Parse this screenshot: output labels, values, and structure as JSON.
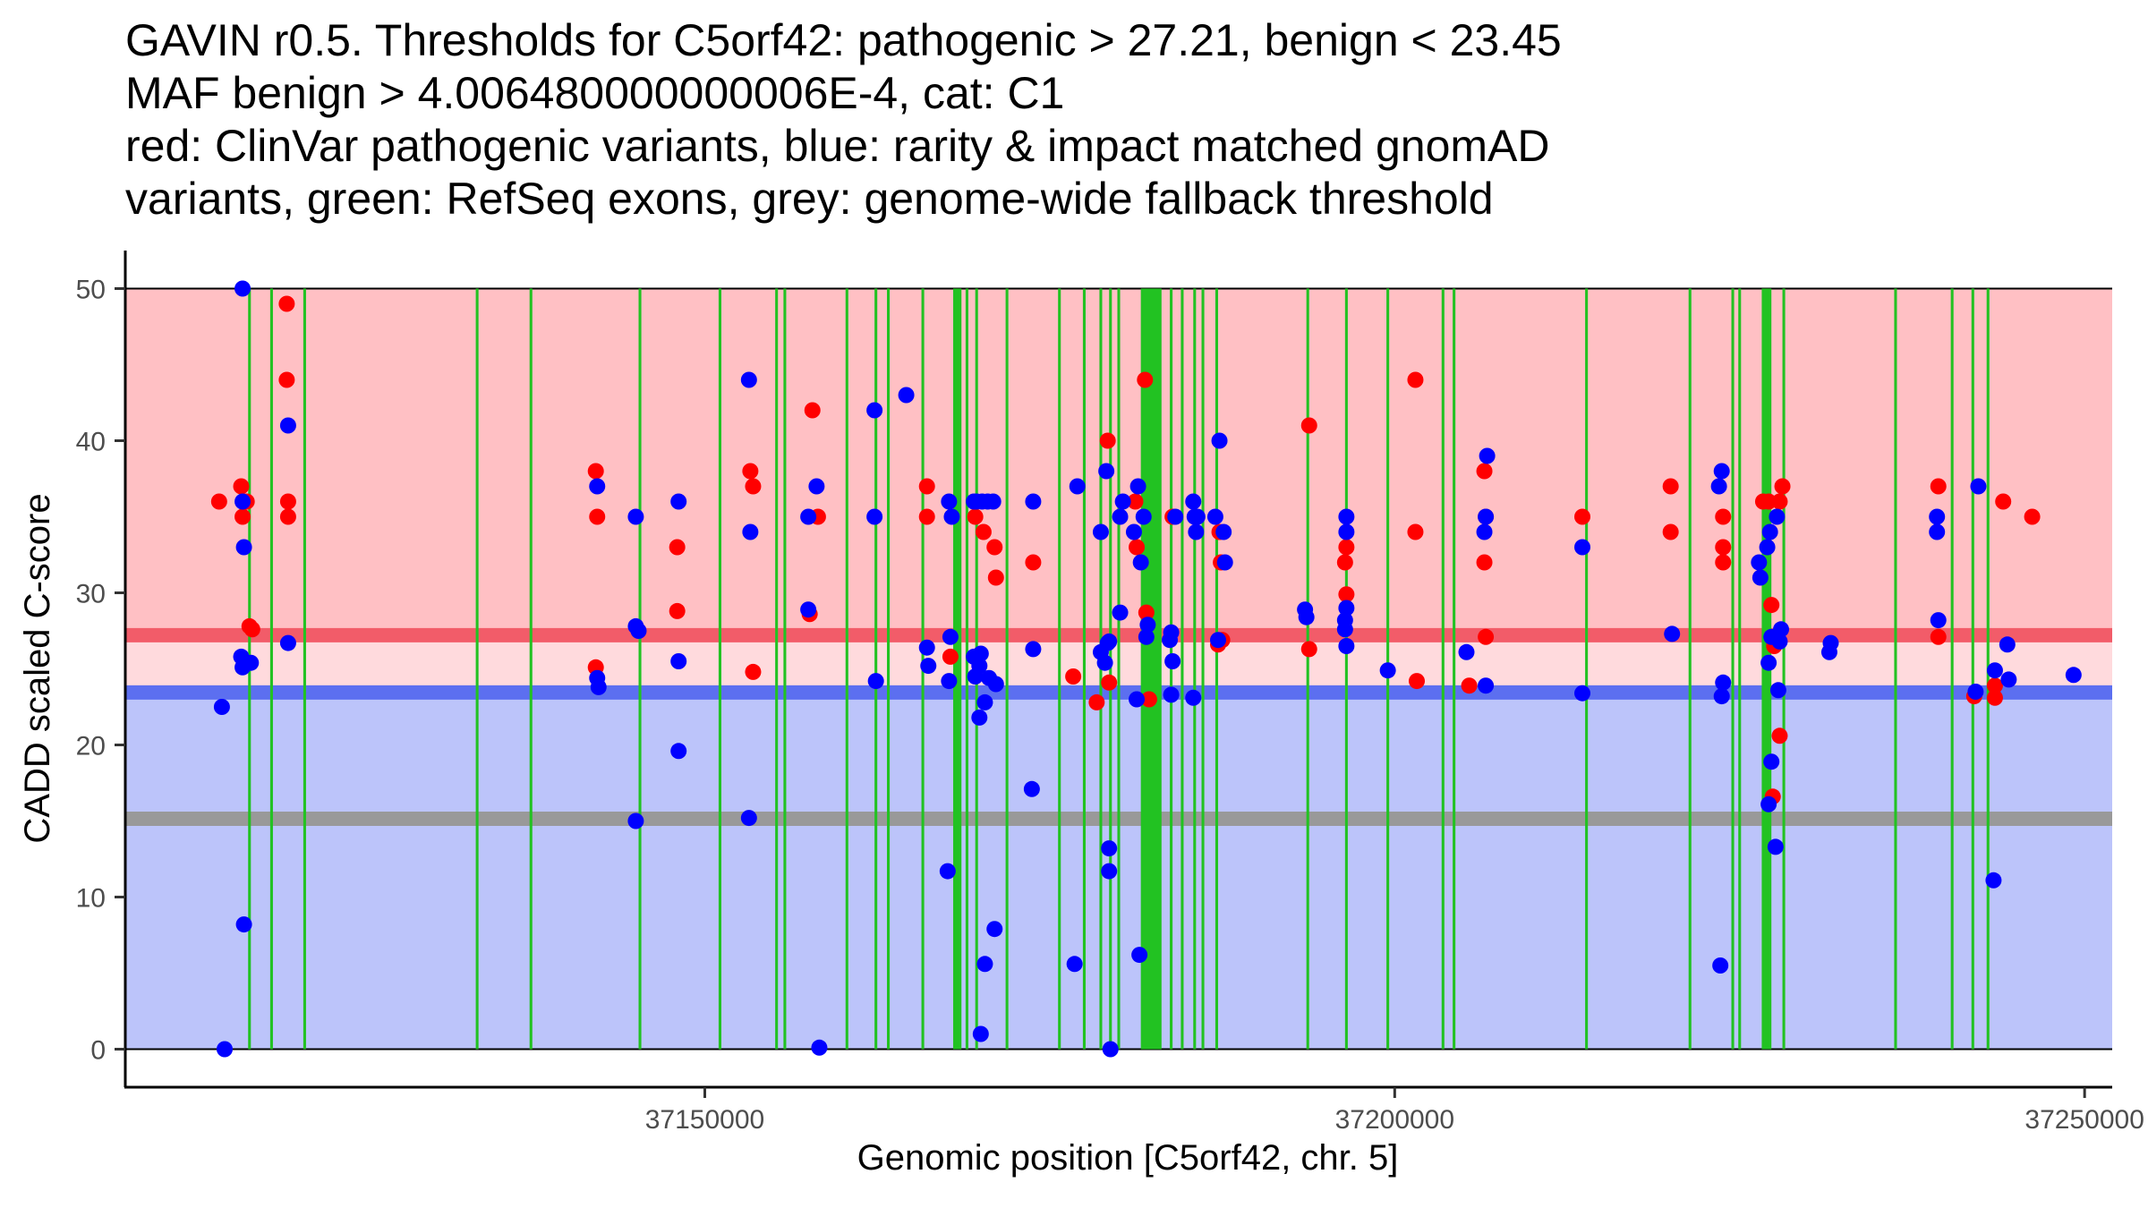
{
  "chart_data": {
    "type": "scatter",
    "title_lines": [
      "GAVIN r0.5. Thresholds for C5orf42: pathogenic > 27.21, benign < 23.45",
      "MAF benign > 4.006480000000006E-4, cat: C1",
      "red: ClinVar pathogenic variants, blue: rarity & impact matched gnomAD",
      "variants, green: RefSeq exons, grey: genome-wide fallback threshold"
    ],
    "xlabel": "Genomic position [C5orf42, chr. 5]",
    "ylabel": "CADD scaled C-score",
    "xlim": [
      37108000,
      37252000
    ],
    "ylim": [
      -2.5,
      52.5
    ],
    "x_ticks": [
      37150000,
      37200000,
      37250000
    ],
    "x_tick_labels": [
      "37150000",
      "37200000",
      "37250000"
    ],
    "y_ticks": [
      0,
      10,
      20,
      30,
      40,
      50
    ],
    "y_tick_labels": [
      "0",
      "10",
      "20",
      "30",
      "40",
      "50"
    ],
    "thresholds": {
      "pathogenic": 27.21,
      "benign": 23.45,
      "fallback": 15.15,
      "top": 50,
      "bottom": 0
    },
    "colors": {
      "pathogenic_band": "#ffc0c4",
      "middle_band": "#ffdadd",
      "benign_band": "#bcc4fa",
      "pathogenic_line": "#f25c69",
      "benign_line": "#5c6ff0",
      "fallback_line": "#999999",
      "exon": "#22c222",
      "pathogenic_point": "#ff0000",
      "benign_point": "#0000ff"
    },
    "exons": [
      [
        37116900,
        37117100
      ],
      [
        37118500,
        37118700
      ],
      [
        37120900,
        37121100
      ],
      [
        37133400,
        37133600
      ],
      [
        37137300,
        37137500
      ],
      [
        37145200,
        37145400
      ],
      [
        37151000,
        37151200
      ],
      [
        37155100,
        37155300
      ],
      [
        37155700,
        37155900
      ],
      [
        37160200,
        37160400
      ],
      [
        37162300,
        37162500
      ],
      [
        37163200,
        37163400
      ],
      [
        37165700,
        37165900
      ],
      [
        37168000,
        37168600
      ],
      [
        37168900,
        37169100
      ],
      [
        37169600,
        37169800
      ],
      [
        37171800,
        37172000
      ],
      [
        37175600,
        37175800
      ],
      [
        37177400,
        37177600
      ],
      [
        37178600,
        37178800
      ],
      [
        37179300,
        37179500
      ],
      [
        37179900,
        37180100
      ],
      [
        37181600,
        37183100
      ],
      [
        37183700,
        37183900
      ],
      [
        37184500,
        37184700
      ],
      [
        37185400,
        37185600
      ],
      [
        37186000,
        37186200
      ],
      [
        37187000,
        37187200
      ],
      [
        37193600,
        37193800
      ],
      [
        37196400,
        37196600
      ],
      [
        37199400,
        37199600
      ],
      [
        37203400,
        37203600
      ],
      [
        37204200,
        37204400
      ],
      [
        37213800,
        37214000
      ],
      [
        37221300,
        37221500
      ],
      [
        37224400,
        37224600
      ],
      [
        37224900,
        37225100
      ],
      [
        37226600,
        37227300
      ],
      [
        37228100,
        37228300
      ],
      [
        37236200,
        37236400
      ],
      [
        37240300,
        37240500
      ],
      [
        37241800,
        37242000
      ],
      [
        37242900,
        37243100
      ]
    ],
    "series": [
      {
        "name": "ClinVar pathogenic variants",
        "color": "red",
        "points": [
          [
            37114800,
            36
          ],
          [
            37116400,
            37
          ],
          [
            37116500,
            35
          ],
          [
            37116800,
            36
          ],
          [
            37117000,
            27.8
          ],
          [
            37117200,
            27.6
          ],
          [
            37119700,
            49
          ],
          [
            37119700,
            44
          ],
          [
            37119800,
            36
          ],
          [
            37119800,
            35
          ],
          [
            37142100,
            38
          ],
          [
            37142200,
            35
          ],
          [
            37142100,
            25.1
          ],
          [
            37148000,
            33
          ],
          [
            37148000,
            28.8
          ],
          [
            37153300,
            38
          ],
          [
            37153500,
            37
          ],
          [
            37153500,
            24.8
          ],
          [
            37157800,
            42
          ],
          [
            37157600,
            28.6
          ],
          [
            37158200,
            35
          ],
          [
            37166100,
            37
          ],
          [
            37166100,
            35
          ],
          [
            37167800,
            25.8
          ],
          [
            37169600,
            35
          ],
          [
            37170200,
            34
          ],
          [
            37171000,
            33
          ],
          [
            37171100,
            31
          ],
          [
            37173800,
            32
          ],
          [
            37176700,
            24.5
          ],
          [
            37178400,
            22.8
          ],
          [
            37179200,
            40
          ],
          [
            37179300,
            24.1
          ],
          [
            37181200,
            36
          ],
          [
            37181300,
            33
          ],
          [
            37181900,
            44
          ],
          [
            37182000,
            28.7
          ],
          [
            37182200,
            23
          ],
          [
            37183900,
            35
          ],
          [
            37187300,
            34
          ],
          [
            37187400,
            32
          ],
          [
            37187200,
            26.6
          ],
          [
            37187500,
            26.9
          ],
          [
            37193800,
            41
          ],
          [
            37193800,
            26.3
          ],
          [
            37196500,
            33
          ],
          [
            37196400,
            32
          ],
          [
            37196500,
            29.9
          ],
          [
            37201500,
            44
          ],
          [
            37201500,
            34
          ],
          [
            37201600,
            24.2
          ],
          [
            37205400,
            23.9
          ],
          [
            37206500,
            38
          ],
          [
            37206600,
            35
          ],
          [
            37206500,
            32
          ],
          [
            37206600,
            27.1
          ],
          [
            37213600,
            35
          ],
          [
            37220000,
            37
          ],
          [
            37220000,
            34
          ],
          [
            37223800,
            35
          ],
          [
            37223800,
            33
          ],
          [
            37223800,
            32
          ],
          [
            37226700,
            36
          ],
          [
            37227100,
            36
          ],
          [
            37227300,
            29.2
          ],
          [
            37227500,
            26.5
          ],
          [
            37227400,
            16.6
          ],
          [
            37227900,
            36
          ],
          [
            37228100,
            37
          ],
          [
            37227900,
            20.6
          ],
          [
            37239400,
            37
          ],
          [
            37239400,
            27.1
          ],
          [
            37242000,
            23.2
          ],
          [
            37243500,
            23.9
          ],
          [
            37243500,
            23.1
          ],
          [
            37244100,
            36
          ],
          [
            37246200,
            35
          ]
        ]
      },
      {
        "name": "rarity & impact matched gnomAD variants",
        "color": "blue",
        "points": [
          [
            37115000,
            22.5
          ],
          [
            37115200,
            0
          ],
          [
            37116500,
            50
          ],
          [
            37116500,
            36
          ],
          [
            37116600,
            33
          ],
          [
            37116400,
            25.8
          ],
          [
            37116500,
            25.1
          ],
          [
            37117100,
            25.4
          ],
          [
            37116600,
            8.2
          ],
          [
            37119800,
            41
          ],
          [
            37119800,
            26.7
          ],
          [
            37142200,
            37
          ],
          [
            37142200,
            24.4
          ],
          [
            37142300,
            23.8
          ],
          [
            37145000,
            35
          ],
          [
            37145000,
            27.8
          ],
          [
            37145200,
            27.5
          ],
          [
            37145000,
            15
          ],
          [
            37148100,
            36
          ],
          [
            37148100,
            25.5
          ],
          [
            37148100,
            19.6
          ],
          [
            37153200,
            44
          ],
          [
            37153300,
            34
          ],
          [
            37153200,
            15.2
          ],
          [
            37157500,
            35
          ],
          [
            37157500,
            28.9
          ],
          [
            37158100,
            37
          ],
          [
            37158300,
            0.1
          ],
          [
            37162300,
            42
          ],
          [
            37162300,
            35
          ],
          [
            37162400,
            24.2
          ],
          [
            37164600,
            43
          ],
          [
            37166100,
            26.4
          ],
          [
            37166200,
            25.2
          ],
          [
            37167700,
            36
          ],
          [
            37167900,
            35
          ],
          [
            37167800,
            27.1
          ],
          [
            37167700,
            24.2
          ],
          [
            37167600,
            11.7
          ],
          [
            37169500,
            36
          ],
          [
            37169700,
            36
          ],
          [
            37170100,
            36
          ],
          [
            37170500,
            36
          ],
          [
            37170900,
            36
          ],
          [
            37169500,
            25.8
          ],
          [
            37169600,
            24.5
          ],
          [
            37170000,
            26
          ],
          [
            37169900,
            25.2
          ],
          [
            37170600,
            24.4
          ],
          [
            37170300,
            22.8
          ],
          [
            37169900,
            21.8
          ],
          [
            37170300,
            5.6
          ],
          [
            37171100,
            24
          ],
          [
            37171000,
            7.9
          ],
          [
            37170000,
            1
          ],
          [
            37173800,
            36
          ],
          [
            37173800,
            26.3
          ],
          [
            37173700,
            17.1
          ],
          [
            37177000,
            37
          ],
          [
            37176800,
            5.6
          ],
          [
            37178700,
            34
          ],
          [
            37179100,
            38
          ],
          [
            37178700,
            26.1
          ],
          [
            37179200,
            26.7
          ],
          [
            37179000,
            25.4
          ],
          [
            37179300,
            26.8
          ],
          [
            37179300,
            13.2
          ],
          [
            37179300,
            11.7
          ],
          [
            37179400,
            0
          ],
          [
            37180300,
            36
          ],
          [
            37180100,
            35
          ],
          [
            37180100,
            28.7
          ],
          [
            37181400,
            37
          ],
          [
            37181100,
            34
          ],
          [
            37181800,
            35
          ],
          [
            37181600,
            32
          ],
          [
            37181300,
            23
          ],
          [
            37181500,
            6.2
          ],
          [
            37182100,
            27.9
          ],
          [
            37182000,
            27.1
          ],
          [
            37183800,
            27.4
          ],
          [
            37183700,
            26.9
          ],
          [
            37183900,
            25.5
          ],
          [
            37183800,
            23.3
          ],
          [
            37184100,
            35
          ],
          [
            37185400,
            36
          ],
          [
            37185500,
            35
          ],
          [
            37185600,
            34
          ],
          [
            37185700,
            35
          ],
          [
            37185400,
            23.1
          ],
          [
            37187300,
            40
          ],
          [
            37187000,
            35
          ],
          [
            37187600,
            34
          ],
          [
            37187700,
            32
          ],
          [
            37187200,
            26.9
          ],
          [
            37193500,
            28.9
          ],
          [
            37193600,
            28.4
          ],
          [
            37196500,
            35
          ],
          [
            37196500,
            34
          ],
          [
            37196500,
            29
          ],
          [
            37196400,
            28.2
          ],
          [
            37196400,
            27.6
          ],
          [
            37196500,
            26.5
          ],
          [
            37199500,
            24.9
          ],
          [
            37205200,
            26.1
          ],
          [
            37206700,
            39
          ],
          [
            37206600,
            35
          ],
          [
            37206500,
            34
          ],
          [
            37206600,
            23.9
          ],
          [
            37213600,
            33
          ],
          [
            37213600,
            23.4
          ],
          [
            37220100,
            27.3
          ],
          [
            37223500,
            37
          ],
          [
            37223700,
            38
          ],
          [
            37223800,
            24.1
          ],
          [
            37223700,
            23.2
          ],
          [
            37223600,
            5.5
          ],
          [
            37226400,
            32
          ],
          [
            37226500,
            31
          ],
          [
            37227000,
            33
          ],
          [
            37227200,
            34
          ],
          [
            37227100,
            25.4
          ],
          [
            37227300,
            27.1
          ],
          [
            37227100,
            16.1
          ],
          [
            37227300,
            18.9
          ],
          [
            37227700,
            35
          ],
          [
            37228000,
            27.6
          ],
          [
            37227900,
            26.8
          ],
          [
            37227600,
            13.3
          ],
          [
            37227800,
            23.6
          ],
          [
            37231600,
            26.7
          ],
          [
            37231500,
            26.1
          ],
          [
            37239300,
            35
          ],
          [
            37239300,
            34
          ],
          [
            37239400,
            28.2
          ],
          [
            37242300,
            37
          ],
          [
            37242100,
            23.5
          ],
          [
            37243500,
            24.9
          ],
          [
            37243400,
            11.1
          ],
          [
            37244400,
            26.6
          ],
          [
            37244500,
            24.3
          ],
          [
            37249200,
            24.6
          ]
        ]
      }
    ]
  }
}
